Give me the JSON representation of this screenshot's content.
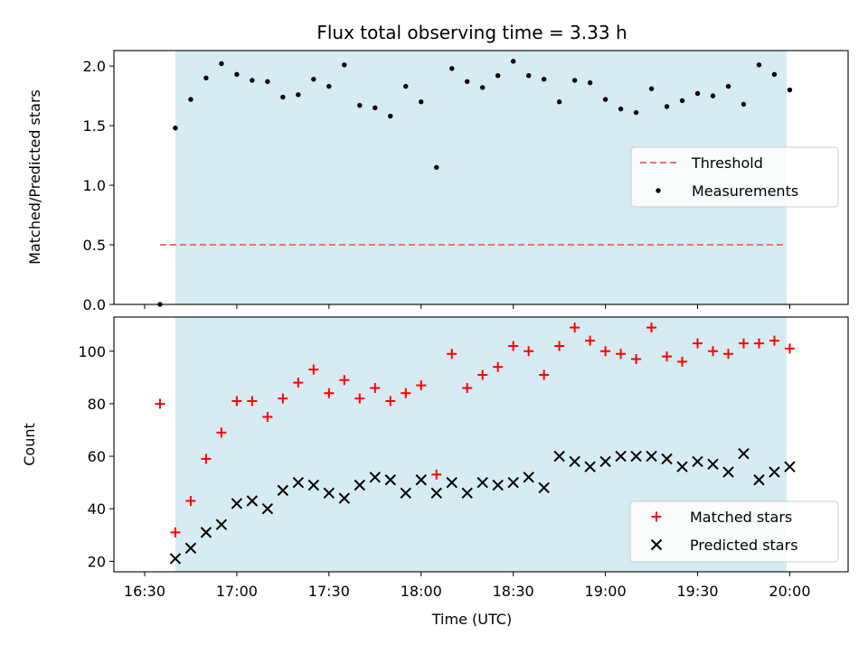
{
  "title": "Flux total observing time = 3.33 h",
  "xlabel": "Time (UTC)",
  "colors": {
    "shade": "#add8e6",
    "threshold": "#f07070",
    "matched": "#ff0000",
    "predicted": "#000000",
    "measurement": "#000000"
  },
  "chart_data": [
    {
      "type": "scatter",
      "ylabel": "Matched/Predicted stars",
      "ylim": [
        0,
        2.13
      ],
      "yticks": [
        0.0,
        0.5,
        1.0,
        1.5,
        2.0
      ],
      "ytick_labels": [
        "0.0",
        "0.5",
        "1.0",
        "1.5",
        "2.0"
      ],
      "xlim": [
        "16:20",
        "20:19"
      ],
      "shaded_span": [
        "16:40",
        "19:59"
      ],
      "threshold": {
        "y": 0.5,
        "x_range": [
          "16:35",
          "19:59"
        ]
      },
      "legend": {
        "position": "center-right",
        "entries": [
          "Threshold",
          "Measurements"
        ]
      },
      "series": [
        {
          "name": "Measurements",
          "x": [
            "16:35",
            "16:40",
            "16:45",
            "16:50",
            "16:55",
            "17:00",
            "17:05",
            "17:10",
            "17:15",
            "17:20",
            "17:25",
            "17:30",
            "17:35",
            "17:40",
            "17:45",
            "17:50",
            "17:55",
            "18:00",
            "18:05",
            "18:10",
            "18:15",
            "18:20",
            "18:25",
            "18:30",
            "18:35",
            "18:40",
            "18:45",
            "18:50",
            "18:55",
            "19:00",
            "19:05",
            "19:10",
            "19:15",
            "19:20",
            "19:25",
            "19:30",
            "19:35",
            "19:40",
            "19:45",
            "19:50",
            "19:55",
            "20:00"
          ],
          "y": [
            0.0,
            1.48,
            1.72,
            1.9,
            2.02,
            1.93,
            1.88,
            1.87,
            1.74,
            1.76,
            1.89,
            1.83,
            2.01,
            1.67,
            1.65,
            1.58,
            1.83,
            1.7,
            1.15,
            1.98,
            1.87,
            1.82,
            1.92,
            2.04,
            1.92,
            1.89,
            1.7,
            1.88,
            1.86,
            1.72,
            1.64,
            1.61,
            1.81,
            1.66,
            1.71,
            1.77,
            1.75,
            1.83,
            1.68,
            2.01,
            1.93,
            1.8
          ]
        }
      ]
    },
    {
      "type": "scatter",
      "ylabel": "Count",
      "ylim": [
        16,
        113
      ],
      "yticks": [
        20,
        40,
        60,
        80,
        100
      ],
      "ytick_labels": [
        "20",
        "40",
        "60",
        "80",
        "100"
      ],
      "xlim": [
        "16:20",
        "20:19"
      ],
      "xticks": [
        "16:30",
        "17:00",
        "17:30",
        "18:00",
        "18:30",
        "19:00",
        "19:30",
        "20:00"
      ],
      "shaded_span": [
        "16:40",
        "19:59"
      ],
      "legend": {
        "position": "lower-right",
        "entries": [
          "Matched stars",
          "Predicted stars"
        ]
      },
      "series": [
        {
          "name": "Matched stars",
          "marker": "+",
          "x": [
            "16:35",
            "16:40",
            "16:45",
            "16:50",
            "16:55",
            "17:00",
            "17:05",
            "17:10",
            "17:15",
            "17:20",
            "17:25",
            "17:30",
            "17:35",
            "17:40",
            "17:45",
            "17:50",
            "17:55",
            "18:00",
            "18:05",
            "18:10",
            "18:15",
            "18:20",
            "18:25",
            "18:30",
            "18:35",
            "18:40",
            "18:45",
            "18:50",
            "18:55",
            "19:00",
            "19:05",
            "19:10",
            "19:15",
            "19:20",
            "19:25",
            "19:30",
            "19:35",
            "19:40",
            "19:45",
            "19:50",
            "19:55",
            "20:00"
          ],
          "y": [
            80,
            31,
            43,
            59,
            69,
            81,
            81,
            75,
            82,
            88,
            93,
            84,
            89,
            82,
            86,
            81,
            84,
            87,
            53,
            99,
            86,
            91,
            94,
            102,
            100,
            91,
            102,
            109,
            104,
            100,
            99,
            97,
            109,
            98,
            96,
            103,
            100,
            99,
            103,
            103,
            104,
            101
          ]
        },
        {
          "name": "Predicted stars",
          "marker": "x",
          "x": [
            "16:40",
            "16:45",
            "16:50",
            "16:55",
            "17:00",
            "17:05",
            "17:10",
            "17:15",
            "17:20",
            "17:25",
            "17:30",
            "17:35",
            "17:40",
            "17:45",
            "17:50",
            "17:55",
            "18:00",
            "18:05",
            "18:10",
            "18:15",
            "18:20",
            "18:25",
            "18:30",
            "18:35",
            "18:40",
            "18:45",
            "18:50",
            "18:55",
            "19:00",
            "19:05",
            "19:10",
            "19:15",
            "19:20",
            "19:25",
            "19:30",
            "19:35",
            "19:40",
            "19:45",
            "19:50",
            "19:55",
            "20:00"
          ],
          "y": [
            21,
            25,
            31,
            34,
            42,
            43,
            40,
            47,
            50,
            49,
            46,
            44,
            49,
            52,
            51,
            46,
            51,
            46,
            50,
            46,
            50,
            49,
            50,
            52,
            48,
            60,
            58,
            56,
            58,
            60,
            60,
            60,
            59,
            56,
            58,
            57,
            54,
            61,
            51,
            54,
            56
          ]
        }
      ]
    }
  ]
}
